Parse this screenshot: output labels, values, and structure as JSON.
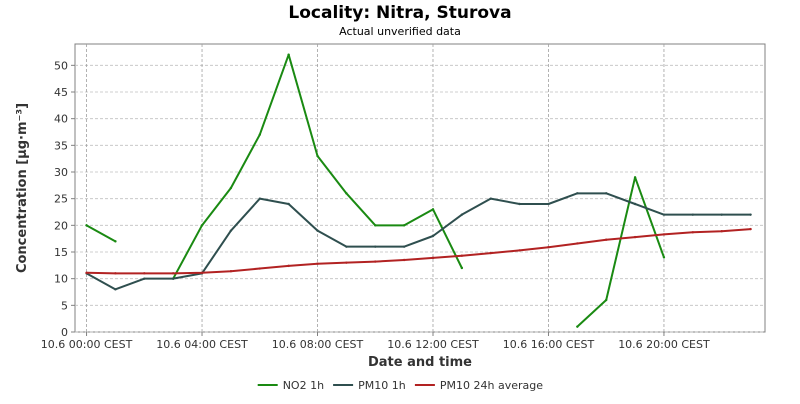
{
  "chart_data": {
    "type": "line",
    "title": "Locality: Nitra, Sturova",
    "subtitle": "Actual unverified data",
    "xlabel": "Date and time",
    "ylabel": "Concentration [µg·m⁻³]",
    "x": [
      "00",
      "01",
      "02",
      "03",
      "04",
      "05",
      "06",
      "07",
      "08",
      "09",
      "10",
      "11",
      "12",
      "13",
      "14",
      "15",
      "16",
      "17",
      "18",
      "19",
      "20",
      "21",
      "22",
      "23"
    ],
    "x_tick_labels": [
      {
        "hour": 0,
        "label": "10.6 00:00 CEST"
      },
      {
        "hour": 4,
        "label": "10.6 04:00 CEST"
      },
      {
        "hour": 8,
        "label": "10.6 08:00 CEST"
      },
      {
        "hour": 12,
        "label": "10.6 12:00 CEST"
      },
      {
        "hour": 16,
        "label": "10.6 16:00 CEST"
      },
      {
        "hour": 20,
        "label": "10.6 20:00 CEST"
      }
    ],
    "y_ticks": [
      0,
      5,
      10,
      15,
      20,
      25,
      30,
      35,
      40,
      45,
      50
    ],
    "ylim": [
      0,
      54
    ],
    "xlim": [
      -0.4,
      23.5
    ],
    "grid": true,
    "legend_position": "bottom",
    "series": [
      {
        "name": "NO2 1h",
        "color": "#1a8a12",
        "values": [
          20,
          17,
          null,
          10,
          20,
          27,
          37,
          52,
          33,
          26,
          20,
          20,
          23,
          12,
          null,
          null,
          null,
          1,
          6,
          29,
          14,
          null,
          null,
          null
        ]
      },
      {
        "name": "PM10 1h",
        "color": "#2f4f4f",
        "values": [
          11,
          8,
          10,
          10,
          11,
          19,
          25,
          24,
          19,
          16,
          16,
          16,
          18,
          22,
          25,
          24,
          24,
          26,
          26,
          24,
          22,
          22,
          22,
          22
        ]
      },
      {
        "name": "PM10 24h average",
        "color": "#b22222",
        "values": [
          11.1,
          11.0,
          11.0,
          11.0,
          11.1,
          11.4,
          11.9,
          12.4,
          12.8,
          13.0,
          13.2,
          13.5,
          13.9,
          14.3,
          14.8,
          15.3,
          15.9,
          16.6,
          17.3,
          17.8,
          18.3,
          18.7,
          18.9,
          19.3
        ]
      }
    ]
  }
}
